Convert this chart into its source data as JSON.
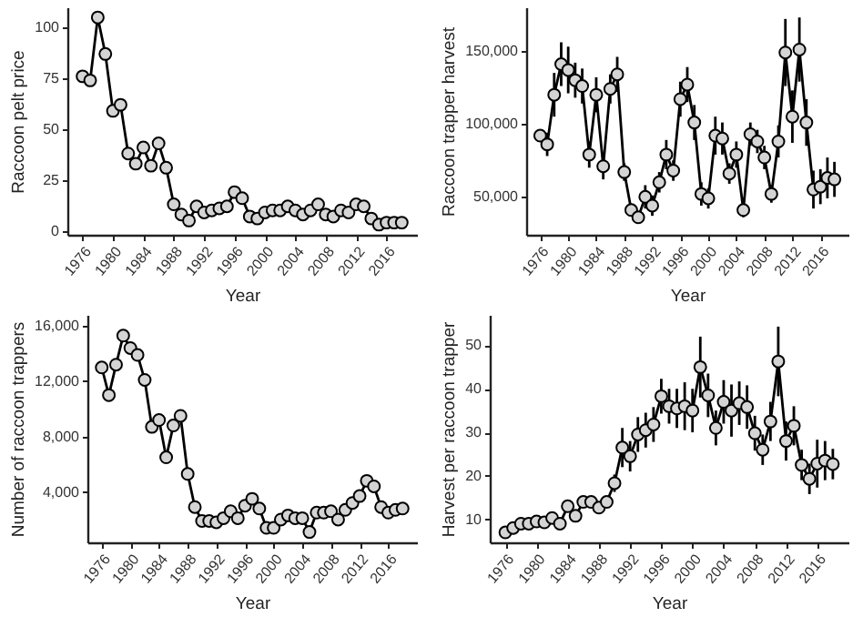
{
  "chart_data": [
    {
      "type": "line",
      "xlabel": "Year",
      "ylabel": "Raccoon pelt price",
      "color": "#000000",
      "marker": "circle",
      "grid": false,
      "x": [
        1976,
        1977,
        1978,
        1979,
        1980,
        1981,
        1982,
        1983,
        1984,
        1985,
        1986,
        1987,
        1988,
        1989,
        1990,
        1991,
        1992,
        1993,
        1994,
        1995,
        1996,
        1997,
        1998,
        1999,
        2000,
        2001,
        2002,
        2003,
        2004,
        2005,
        2006,
        2007,
        2008,
        2009,
        2010,
        2011,
        2012,
        2013,
        2014,
        2015,
        2016,
        2017,
        2018
      ],
      "values": [
        76,
        74,
        105,
        87,
        59,
        62,
        38,
        33,
        41,
        32,
        43,
        31,
        13,
        8,
        5,
        12,
        9,
        10,
        11,
        12,
        19,
        16,
        7,
        6,
        9,
        10,
        10,
        12,
        10,
        8,
        10,
        13,
        8,
        7,
        10,
        9,
        13,
        12,
        6,
        3,
        4,
        4,
        4
      ],
      "xlim": [
        1974,
        2020
      ],
      "xticks": [
        1976,
        1980,
        1984,
        1988,
        1992,
        1996,
        2000,
        2004,
        2008,
        2012,
        2016
      ],
      "ylim": [
        -2,
        110
      ],
      "yticks": [
        0,
        25,
        50,
        75,
        100
      ]
    },
    {
      "type": "line",
      "xlabel": "Year",
      "ylabel": "Raccoon trapper harvest",
      "color": "#000000",
      "marker": "circle",
      "grid": false,
      "x": [
        1976,
        1977,
        1978,
        1979,
        1980,
        1981,
        1982,
        1983,
        1984,
        1985,
        1986,
        1987,
        1988,
        1989,
        1990,
        1991,
        1992,
        1993,
        1994,
        1995,
        1996,
        1997,
        1998,
        1999,
        2000,
        2001,
        2002,
        2003,
        2004,
        2005,
        2006,
        2007,
        2008,
        2009,
        2010,
        2011,
        2012,
        2013,
        2014,
        2015,
        2016,
        2017,
        2018
      ],
      "values": [
        92000,
        86000,
        120000,
        141000,
        137000,
        130000,
        126000,
        79000,
        120000,
        71000,
        124000,
        134000,
        67000,
        41000,
        36000,
        50000,
        44000,
        60000,
        79000,
        68000,
        117000,
        127000,
        101000,
        52000,
        49000,
        92000,
        90000,
        66000,
        79000,
        41000,
        93000,
        88000,
        77000,
        52000,
        88000,
        149000,
        105000,
        151000,
        101000,
        55000,
        57000,
        63000,
        62000
      ],
      "errors": [
        4000,
        8000,
        15000,
        15000,
        16000,
        12000,
        12000,
        9000,
        12000,
        9000,
        10000,
        12000,
        6000,
        4000,
        3000,
        8000,
        7000,
        7000,
        10000,
        7000,
        12000,
        12000,
        12000,
        8000,
        7000,
        13000,
        11000,
        7000,
        9000,
        5000,
        8000,
        8000,
        8000,
        6000,
        11000,
        23000,
        18000,
        22000,
        16000,
        13000,
        12000,
        14000,
        12000
      ],
      "xlim": [
        1974,
        2020
      ],
      "xticks": [
        1976,
        1980,
        1984,
        1988,
        1992,
        1996,
        2000,
        2004,
        2008,
        2012,
        2016
      ],
      "ylim": [
        24000,
        180000
      ],
      "yticks": [
        {
          "value": 50000,
          "label": "50,000"
        },
        {
          "value": 100000,
          "label": "100,000"
        },
        {
          "value": 150000,
          "label": "150,000"
        }
      ]
    },
    {
      "type": "line",
      "xlabel": "Year",
      "ylabel": "Number of raccoon trappers",
      "color": "#000000",
      "marker": "circle",
      "grid": false,
      "x": [
        1976,
        1977,
        1978,
        1979,
        1980,
        1981,
        1982,
        1983,
        1984,
        1985,
        1986,
        1987,
        1988,
        1989,
        1990,
        1991,
        1992,
        1993,
        1994,
        1995,
        1996,
        1997,
        1998,
        1999,
        2000,
        2001,
        2002,
        2003,
        2004,
        2005,
        2006,
        2007,
        2008,
        2009,
        2010,
        2011,
        2012,
        2013,
        2014,
        2015,
        2016,
        2017,
        2018
      ],
      "values": [
        13000,
        11000,
        13200,
        15300,
        14400,
        13900,
        12100,
        8700,
        9200,
        6500,
        8800,
        9500,
        5300,
        2900,
        1900,
        1900,
        1800,
        2100,
        2600,
        2100,
        3000,
        3500,
        2800,
        1400,
        1400,
        2000,
        2300,
        2100,
        2100,
        1100,
        2500,
        2500,
        2600,
        2000,
        2700,
        3200,
        3700,
        4800,
        4400,
        2900,
        2500,
        2700,
        2800
      ],
      "xlim": [
        1974,
        2020
      ],
      "xticks": [
        1976,
        1980,
        1984,
        1988,
        1992,
        1996,
        2000,
        2004,
        2008,
        2012,
        2016
      ],
      "ylim": [
        350,
        16800
      ],
      "yticks": [
        {
          "value": 4000,
          "label": "4,000"
        },
        {
          "value": 8000,
          "label": "8,000"
        },
        {
          "value": 12000,
          "label": "12,000"
        },
        {
          "value": 16000,
          "label": "16,000"
        }
      ]
    },
    {
      "type": "line",
      "xlabel": "Year",
      "ylabel": "Harvest per raccoon trapper",
      "color": "#000000",
      "marker": "circle",
      "grid": false,
      "x": [
        1976,
        1977,
        1978,
        1979,
        1980,
        1981,
        1982,
        1983,
        1984,
        1985,
        1986,
        1987,
        1988,
        1989,
        1990,
        1991,
        1992,
        1993,
        1994,
        1995,
        1996,
        1997,
        1998,
        1999,
        2000,
        2001,
        2002,
        2003,
        2004,
        2005,
        2006,
        2007,
        2008,
        2009,
        2010,
        2011,
        2012,
        2013,
        2014,
        2015,
        2016,
        2017,
        2018
      ],
      "values": [
        7,
        8,
        9,
        9,
        9.5,
        9.3,
        10.3,
        9,
        13,
        10.8,
        14,
        14,
        12.7,
        14,
        18.3,
        26.5,
        24.5,
        29.5,
        30.5,
        31.8,
        38.3,
        36,
        35.5,
        36,
        35,
        45,
        38.5,
        31,
        37,
        35,
        36.7,
        35.8,
        29.8,
        26,
        32.5,
        46.3,
        28,
        31.5,
        22.5,
        19.3,
        22.8,
        23.5,
        22.7
      ],
      "errors": [
        null,
        null,
        null,
        null,
        null,
        null,
        null,
        null,
        null,
        null,
        null,
        null,
        null,
        null,
        2,
        4.5,
        3.5,
        4,
        4,
        4,
        4,
        4,
        4.5,
        5.5,
        5,
        7,
        5,
        4,
        5,
        6,
        5,
        5,
        4,
        3.5,
        4.5,
        8,
        4.5,
        4.5,
        3.5,
        3.5,
        5.5,
        4.5,
        3.5
      ],
      "xlim": [
        1974,
        2020
      ],
      "xticks": [
        1976,
        1980,
        1984,
        1988,
        1992,
        1996,
        2000,
        2004,
        2008,
        2012,
        2016
      ],
      "ylim": [
        4.7,
        57
      ],
      "yticks": [
        10,
        20,
        30,
        40,
        50
      ]
    }
  ]
}
